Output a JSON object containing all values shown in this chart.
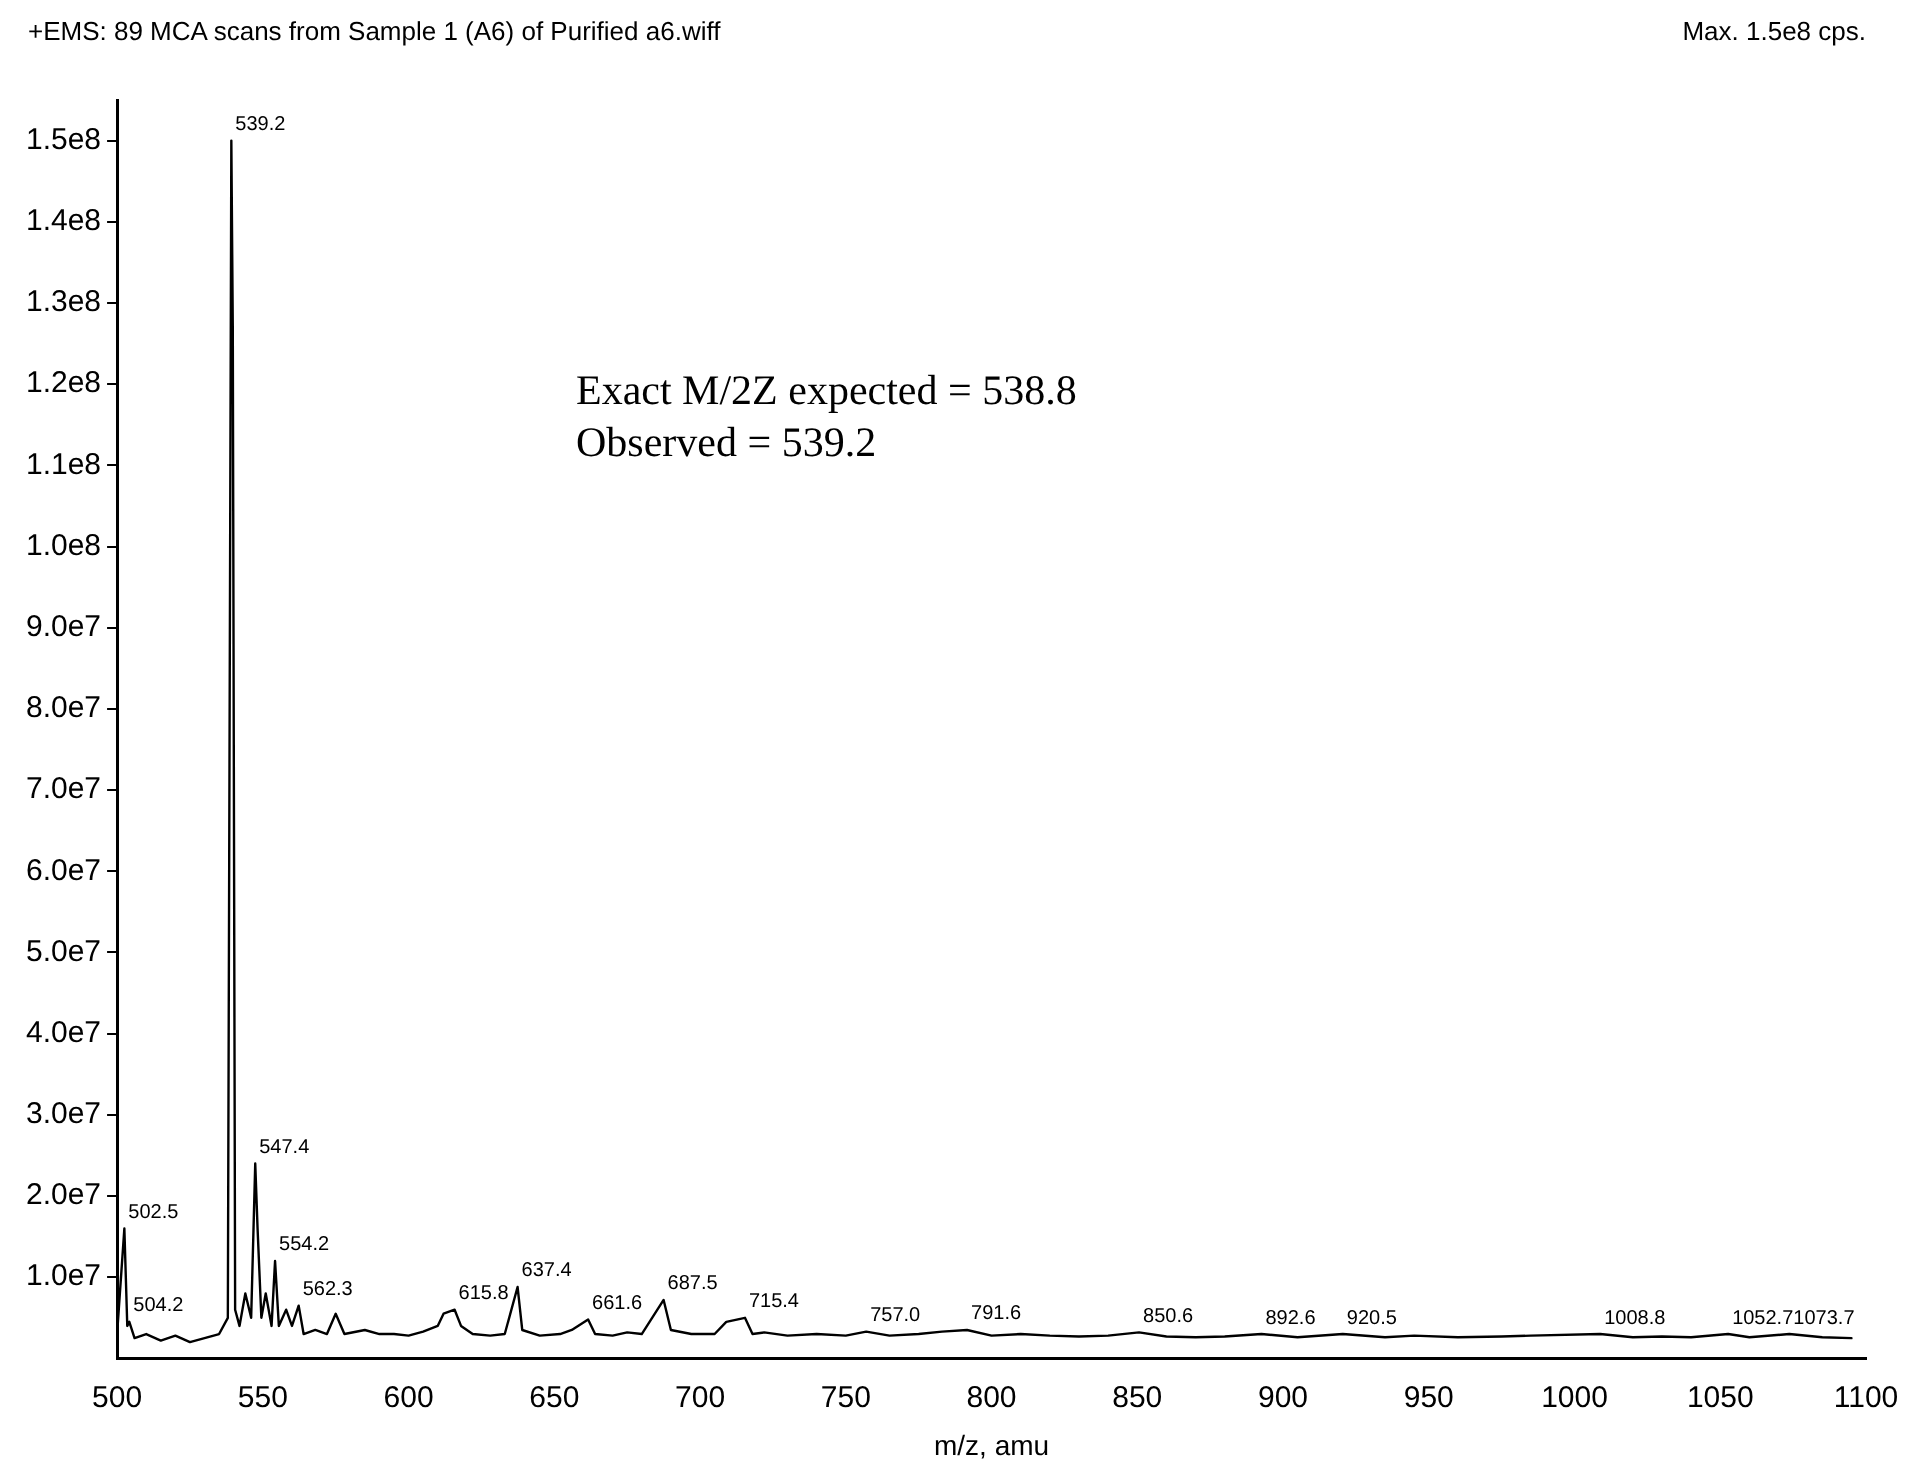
{
  "chart_data": {
    "type": "line",
    "title": "+EMS: 89 MCA scans from Sample 1 (A6) of Purified a6.wiff",
    "xlabel": "m/z, amu",
    "annotations": [
      "Max. 1.5e8 cps.",
      "Exact M/2Z expected = 538.8",
      "Observed = 539.2",
      {
        "text": "502.5",
        "x": 502.5,
        "y": 16000000
      },
      {
        "text": "504.2",
        "x": 504.2,
        "y": 4500000
      },
      {
        "text": "539.2",
        "x": 539.2,
        "y": 150000000
      },
      {
        "text": "547.4",
        "x": 547.4,
        "y": 24000000
      },
      {
        "text": "554.2",
        "x": 554.2,
        "y": 12000000
      },
      {
        "text": "562.3",
        "x": 562.3,
        "y": 6500000
      },
      {
        "text": "615.8",
        "x": 615.8,
        "y": 6000000
      },
      {
        "text": "637.4",
        "x": 637.4,
        "y": 8800000
      },
      {
        "text": "661.6",
        "x": 661.6,
        "y": 4800000
      },
      {
        "text": "687.5",
        "x": 687.5,
        "y": 7200000
      },
      {
        "text": "715.4",
        "x": 715.4,
        "y": 5000000
      },
      {
        "text": "757.0",
        "x": 757,
        "y": 3300000
      },
      {
        "text": "791.6",
        "x": 791.6,
        "y": 3500000
      },
      {
        "text": "850.6",
        "x": 850.6,
        "y": 3200000
      },
      {
        "text": "892.6",
        "x": 892.6,
        "y": 3000000
      },
      {
        "text": "920.5",
        "x": 920.5,
        "y": 3000000
      },
      {
        "text": "1008.8",
        "x": 1008.8,
        "y": 3000000
      },
      {
        "text": "1052.7",
        "x": 1052.7,
        "y": 3000000
      },
      {
        "text": "1073.7",
        "x": 1073.7,
        "y": 3000000
      }
    ],
    "xlim": [
      500,
      1100
    ],
    "xticks": [
      500,
      550,
      600,
      650,
      700,
      750,
      800,
      850,
      900,
      950,
      1000,
      1050,
      1100
    ],
    "ylim": [
      0,
      155000000
    ],
    "yticks": [
      {
        "value": 10000000,
        "label": "1.0e7"
      },
      {
        "value": 20000000,
        "label": "2.0e7"
      },
      {
        "value": 30000000,
        "label": "3.0e7"
      },
      {
        "value": 40000000,
        "label": "4.0e7"
      },
      {
        "value": 50000000,
        "label": "5.0e7"
      },
      {
        "value": 60000000,
        "label": "6.0e7"
      },
      {
        "value": 70000000,
        "label": "7.0e7"
      },
      {
        "value": 80000000,
        "label": "8.0e7"
      },
      {
        "value": 90000000,
        "label": "9.0e7"
      },
      {
        "value": 100000000,
        "label": "1.0e8"
      },
      {
        "value": 110000000,
        "label": "1.1e8"
      },
      {
        "value": 120000000,
        "label": "1.2e8"
      },
      {
        "value": 130000000,
        "label": "1.3e8"
      },
      {
        "value": 140000000,
        "label": "1.4e8"
      },
      {
        "value": 150000000,
        "label": "1.5e8"
      }
    ],
    "grid": false,
    "legend": false,
    "marker": "none",
    "line_style": "solid",
    "series": [
      {
        "color": "#000000",
        "x": [
          500,
          502.5,
          503.5,
          504.2,
          506,
          510,
          515,
          520,
          525,
          530,
          535,
          538,
          539.2,
          539.7,
          540.5,
          542,
          544,
          546,
          547.4,
          548.2,
          549.5,
          551,
          553,
          554.2,
          555.5,
          558,
          560,
          562.3,
          564,
          568,
          572,
          575,
          578,
          585,
          590,
          595,
          600,
          605,
          610,
          612,
          615.8,
          618,
          622,
          628,
          633,
          637.4,
          639,
          645,
          652,
          656,
          661.6,
          664,
          670,
          675,
          680,
          687.5,
          690,
          697,
          705,
          709,
          715.4,
          718,
          722,
          730,
          740,
          750,
          757,
          765,
          775,
          783,
          791.6,
          800,
          810,
          820,
          830,
          840,
          850.6,
          860,
          870,
          880,
          892.6,
          905,
          920.5,
          935,
          945,
          960,
          975,
          985,
          1008.8,
          1020,
          1030,
          1040,
          1052.7,
          1060,
          1073.7,
          1085,
          1095
        ],
        "values": [
          3000000,
          16000000,
          4000000,
          4500000,
          2500000,
          3000000,
          2200000,
          2800000,
          2000000,
          2500000,
          3000000,
          5000000,
          150000000,
          127000000,
          6000000,
          4000000,
          8000000,
          5000000,
          24000000,
          16000000,
          5000000,
          8000000,
          4000000,
          12000000,
          4000000,
          6000000,
          4000000,
          6500000,
          3000000,
          3500000,
          3000000,
          5500000,
          3000000,
          3500000,
          3000000,
          3000000,
          2800000,
          3300000,
          4000000,
          5500000,
          6000000,
          4000000,
          3000000,
          2800000,
          3000000,
          8800000,
          3500000,
          2800000,
          3000000,
          3500000,
          4800000,
          3000000,
          2800000,
          3200000,
          3000000,
          7200000,
          3500000,
          3000000,
          3000000,
          4500000,
          5000000,
          3000000,
          3200000,
          2800000,
          3000000,
          2800000,
          3300000,
          2800000,
          3000000,
          3300000,
          3500000,
          2800000,
          3000000,
          2800000,
          2700000,
          2800000,
          3200000,
          2700000,
          2600000,
          2700000,
          3000000,
          2600000,
          3000000,
          2600000,
          2800000,
          2600000,
          2700000,
          2800000,
          3000000,
          2600000,
          2700000,
          2600000,
          3000000,
          2600000,
          3000000,
          2600000,
          2500000
        ]
      }
    ]
  }
}
